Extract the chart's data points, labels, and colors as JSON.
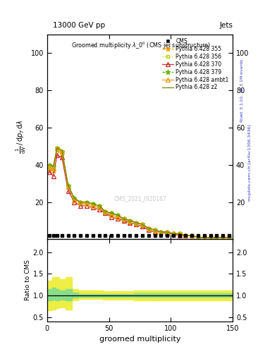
{
  "title": "13000 GeV pp",
  "title_right": "Jets",
  "xlabel": "groomed multiplicity",
  "ylabel_ratio": "Ratio to CMS",
  "watermark": "CMS_2021_I920187",
  "xlim": [
    0,
    150
  ],
  "ylim_main": [
    0,
    110
  ],
  "ylim_ratio": [
    0.4,
    2.3
  ],
  "yticks_main": [
    20,
    40,
    60,
    80,
    100
  ],
  "yticks_ratio": [
    0.5,
    1.0,
    1.5,
    2.0
  ],
  "xticks": [
    0,
    50,
    100,
    150
  ],
  "py355_x": [
    2,
    5,
    8,
    12,
    17,
    22,
    27,
    32,
    37,
    42,
    47,
    52,
    57,
    62,
    67,
    72,
    77,
    82,
    87,
    92,
    97,
    102,
    107,
    112,
    117,
    122,
    127,
    132,
    137,
    142,
    147
  ],
  "py355_y": [
    38,
    37,
    48,
    46,
    28,
    21,
    19,
    19,
    18,
    17,
    14,
    13,
    12,
    10,
    9,
    8,
    7,
    5,
    4,
    4,
    3,
    3,
    2,
    2,
    2,
    1,
    1,
    1,
    1,
    1,
    1
  ],
  "py356_x": [
    2,
    5,
    8,
    12,
    17,
    22,
    27,
    32,
    37,
    42,
    47,
    52,
    57,
    62,
    67,
    72,
    77,
    82,
    87,
    92,
    97,
    102,
    107,
    112,
    117,
    122,
    127,
    132,
    137,
    142,
    147
  ],
  "py356_y": [
    39,
    38,
    49,
    47,
    28,
    22,
    20,
    20,
    19,
    18,
    15,
    14,
    13,
    11,
    10,
    9,
    8,
    6,
    5,
    4,
    4,
    3,
    3,
    2,
    2,
    1,
    1,
    1,
    1,
    1,
    1
  ],
  "py370_x": [
    2,
    5,
    8,
    12,
    17,
    22,
    27,
    32,
    37,
    42,
    47,
    52,
    57,
    62,
    67,
    72,
    77,
    82,
    87,
    92,
    97,
    102,
    107,
    112,
    117,
    122,
    127,
    132,
    137,
    142,
    147
  ],
  "py370_y": [
    36,
    34,
    45,
    44,
    26,
    20,
    18,
    18,
    17,
    16,
    14,
    12,
    11,
    10,
    9,
    8,
    7,
    5,
    4,
    4,
    3,
    3,
    2,
    2,
    2,
    1,
    1,
    1,
    1,
    1,
    1
  ],
  "py379_x": [
    2,
    5,
    8,
    12,
    17,
    22,
    27,
    32,
    37,
    42,
    47,
    52,
    57,
    62,
    67,
    72,
    77,
    82,
    87,
    92,
    97,
    102,
    107,
    112,
    117,
    122,
    127,
    132,
    137,
    142,
    147
  ],
  "py379_y": [
    40,
    39,
    49,
    47,
    29,
    22,
    20,
    20,
    19,
    18,
    15,
    14,
    13,
    11,
    10,
    9,
    8,
    6,
    5,
    4,
    4,
    3,
    3,
    2,
    2,
    1,
    1,
    1,
    1,
    1,
    1
  ],
  "pyambt1_x": [
    2,
    5,
    8,
    12,
    17,
    22,
    27,
    32,
    37,
    42,
    47,
    52,
    57,
    62,
    67,
    72,
    77,
    82,
    87,
    92,
    97,
    102,
    107,
    112,
    117,
    122,
    127,
    132,
    137,
    142,
    147
  ],
  "pyambt1_y": [
    39,
    38,
    49,
    47,
    28,
    21,
    20,
    19,
    18,
    17,
    15,
    13,
    12,
    11,
    10,
    9,
    8,
    6,
    5,
    4,
    4,
    3,
    3,
    2,
    2,
    1,
    1,
    1,
    1,
    1,
    1
  ],
  "pyz2_x": [
    2,
    5,
    8,
    12,
    17,
    22,
    27,
    32,
    37,
    42,
    47,
    52,
    57,
    62,
    67,
    72,
    77,
    82,
    87,
    92,
    97,
    102,
    107,
    112,
    117,
    122,
    127,
    132,
    137,
    142,
    147
  ],
  "pyz2_y": [
    40,
    39,
    49,
    48,
    29,
    22,
    20,
    20,
    19,
    18,
    15,
    14,
    13,
    11,
    10,
    9,
    8,
    6,
    5,
    4,
    4,
    3,
    3,
    2,
    2,
    1,
    1,
    1,
    1,
    1,
    1
  ],
  "cms_x": [
    2,
    5,
    8,
    12,
    17,
    22,
    27,
    32,
    37,
    42,
    47,
    52,
    57,
    62,
    67,
    72,
    77,
    82,
    87,
    92,
    97,
    102,
    107,
    112,
    117,
    122,
    127,
    132,
    137,
    142,
    147
  ],
  "cms_y": [
    2,
    2,
    2,
    2,
    2,
    2,
    2,
    2,
    2,
    2,
    2,
    2,
    2,
    2,
    2,
    2,
    2,
    2,
    2,
    2,
    2,
    2,
    2,
    2,
    2,
    2,
    2,
    2,
    2,
    2,
    2
  ],
  "ratio_xedges": [
    0,
    4,
    7,
    10,
    15,
    20,
    25,
    30,
    35,
    40,
    45,
    50,
    55,
    60,
    65,
    70,
    75,
    80,
    85,
    90,
    95,
    100,
    105,
    110,
    115,
    120,
    125,
    130,
    135,
    140,
    145,
    150
  ],
  "ratio_yellow_lo": [
    0.65,
    0.68,
    0.7,
    0.72,
    0.68,
    0.88,
    0.92,
    0.92,
    0.92,
    0.92,
    0.9,
    0.9,
    0.9,
    0.9,
    0.9,
    0.88,
    0.88,
    0.88,
    0.88,
    0.88,
    0.88,
    0.88,
    0.88,
    0.88,
    0.88,
    0.88,
    0.88,
    0.88,
    0.88,
    0.88,
    0.88
  ],
  "ratio_yellow_hi": [
    1.35,
    1.42,
    1.42,
    1.38,
    1.42,
    1.15,
    1.12,
    1.12,
    1.12,
    1.12,
    1.1,
    1.1,
    1.1,
    1.1,
    1.1,
    1.12,
    1.12,
    1.12,
    1.12,
    1.12,
    1.12,
    1.12,
    1.12,
    1.12,
    1.12,
    1.12,
    1.12,
    1.12,
    1.12,
    1.12,
    1.12
  ],
  "ratio_green_lo": [
    0.88,
    0.9,
    0.88,
    0.9,
    0.88,
    0.95,
    0.97,
    0.97,
    0.97,
    0.97,
    0.97,
    0.97,
    0.97,
    0.97,
    0.97,
    0.96,
    0.96,
    0.96,
    0.96,
    0.96,
    0.96,
    0.96,
    0.96,
    0.96,
    0.96,
    0.96,
    0.96,
    0.96,
    0.96,
    0.96,
    0.96
  ],
  "ratio_green_hi": [
    1.15,
    1.18,
    1.15,
    1.12,
    1.15,
    1.06,
    1.04,
    1.04,
    1.04,
    1.04,
    1.04,
    1.04,
    1.04,
    1.04,
    1.04,
    1.05,
    1.05,
    1.05,
    1.05,
    1.05,
    1.05,
    1.05,
    1.05,
    1.05,
    1.05,
    1.05,
    1.05,
    1.05,
    1.05,
    1.05,
    1.05
  ],
  "color_355": "#e8a000",
  "color_356": "#b8d000",
  "color_370": "#cc3333",
  "color_379": "#60bb00",
  "color_ambt1": "#e8a020",
  "color_z2": "#808000",
  "color_cms": "#000000",
  "yellow_band": "#eeee44",
  "green_band": "#88dd88",
  "bg_color": "#ffffff"
}
